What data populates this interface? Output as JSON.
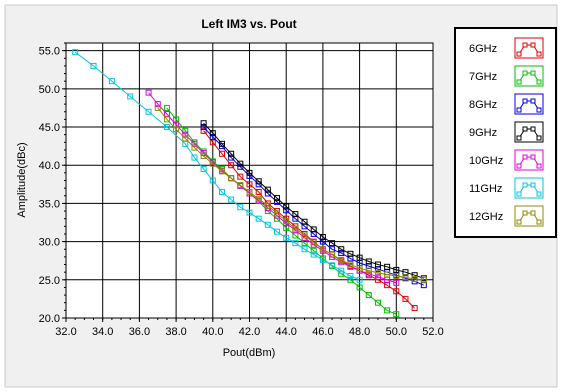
{
  "chart_data": {
    "type": "line",
    "title": "Left IM3 vs. Pout",
    "xlabel": "Pout(dBm)",
    "ylabel": "Amplitude(dBc)",
    "xlim": [
      32.0,
      52.0
    ],
    "ylim": [
      20.0,
      56.0
    ],
    "xticks": [
      "32.0",
      "34.0",
      "36.0",
      "38.0",
      "40.0",
      "42.0",
      "44.0",
      "46.0",
      "48.0",
      "50.0",
      "52.0"
    ],
    "yticks": [
      "20.0",
      "25.0",
      "30.0",
      "35.0",
      "40.0",
      "45.0",
      "50.0",
      "55.0"
    ],
    "grid": true,
    "legend_position": "right",
    "series": [
      {
        "name": "6GHz",
        "color": "#e00000",
        "x": [
          39.5,
          40.0,
          40.5,
          41.0,
          41.5,
          42.0,
          42.5,
          43.0,
          43.5,
          44.0,
          44.5,
          45.0,
          45.5,
          46.0,
          46.5,
          47.0,
          47.5,
          48.0,
          48.5,
          49.0,
          49.5,
          50.0,
          50.5,
          51.0
        ],
        "y": [
          44.5,
          43.0,
          41.5,
          40.0,
          38.5,
          37.5,
          36.5,
          35.0,
          34.0,
          33.0,
          32.0,
          31.0,
          30.0,
          29.0,
          28.3,
          27.5,
          26.8,
          26.2,
          25.6,
          25.0,
          24.3,
          23.5,
          22.5,
          21.3
        ]
      },
      {
        "name": "7GHz",
        "color": "#00c000",
        "x": [
          37.5,
          38.0,
          38.5,
          39.0,
          39.5,
          40.0,
          40.5,
          41.0,
          41.5,
          42.0,
          42.5,
          43.0,
          43.5,
          44.0,
          44.5,
          45.0,
          45.5,
          46.0,
          46.5,
          47.0,
          47.5,
          48.0,
          48.5,
          49.0,
          49.5,
          50.0
        ],
        "y": [
          47.5,
          46.0,
          44.5,
          43.0,
          41.8,
          40.5,
          39.5,
          38.3,
          37.3,
          36.3,
          35.3,
          34.0,
          33.0,
          31.8,
          30.8,
          29.8,
          28.8,
          27.8,
          26.8,
          25.8,
          25.0,
          24.0,
          23.0,
          22.0,
          21.0,
          20.5
        ]
      },
      {
        "name": "8GHz",
        "color": "#0000e0",
        "x": [
          39.5,
          40.0,
          40.5,
          41.0,
          41.5,
          42.0,
          42.5,
          43.0,
          43.5,
          44.0,
          44.5,
          45.0,
          45.5,
          46.0,
          46.5,
          47.0,
          47.5,
          48.0,
          48.5,
          49.0,
          49.5,
          50.0,
          50.5,
          51.0,
          51.5
        ],
        "y": [
          45.0,
          43.7,
          42.5,
          41.0,
          39.8,
          38.6,
          37.5,
          36.3,
          35.2,
          34.1,
          33.0,
          32.0,
          31.0,
          30.0,
          29.0,
          28.5,
          27.8,
          27.2,
          26.8,
          26.4,
          26.0,
          25.6,
          25.2,
          24.8,
          24.3
        ]
      },
      {
        "name": "9GHz",
        "color": "#000000",
        "x": [
          39.5,
          40.0,
          40.5,
          41.0,
          41.5,
          42.0,
          42.5,
          43.0,
          43.5,
          44.0,
          44.5,
          45.0,
          45.5,
          46.0,
          46.5,
          47.0,
          47.5,
          48.0,
          48.5,
          49.0,
          49.5,
          50.0,
          50.5,
          51.0,
          51.5
        ],
        "y": [
          45.5,
          44.2,
          42.8,
          41.5,
          40.2,
          39.0,
          37.9,
          36.8,
          35.7,
          34.6,
          33.6,
          32.6,
          31.6,
          30.6,
          29.8,
          29.0,
          28.4,
          27.9,
          27.4,
          27.0,
          26.7,
          26.3,
          26.0,
          25.6,
          25.2
        ]
      },
      {
        "name": "10GHz",
        "color": "#e000e0",
        "x": [
          36.5,
          37.0,
          37.5,
          38.0,
          38.5,
          39.0,
          39.5,
          40.0,
          40.5,
          41.0,
          41.5,
          42.0,
          42.5,
          43.0,
          43.5,
          44.0,
          44.5,
          45.0,
          45.5,
          46.0,
          46.5,
          47.0,
          47.5,
          48.0,
          48.5,
          49.0,
          49.5,
          50.0
        ],
        "y": [
          49.5,
          48.0,
          46.7,
          45.3,
          44.0,
          42.8,
          41.6,
          40.4,
          39.3,
          38.3,
          37.3,
          36.3,
          35.4,
          34.4,
          33.4,
          32.4,
          31.5,
          30.5,
          29.6,
          28.8,
          28.0,
          27.3,
          26.7,
          26.2,
          25.8,
          25.4,
          25.0,
          24.6
        ]
      },
      {
        "name": "11GHz",
        "color": "#00c8e0",
        "x": [
          32.5,
          33.5,
          34.5,
          35.5,
          36.5,
          37.5,
          38.5,
          39.0,
          39.5,
          40.0,
          40.5,
          41.0,
          41.5,
          42.0,
          42.5,
          43.0,
          43.5,
          44.0,
          44.5,
          45.0,
          45.5,
          46.0,
          46.5,
          47.0,
          47.5,
          48.0
        ],
        "y": [
          54.8,
          53.0,
          51.0,
          49.0,
          47.0,
          45.0,
          42.8,
          41.0,
          39.5,
          38.0,
          36.5,
          35.5,
          34.5,
          33.8,
          33.0,
          32.2,
          31.3,
          30.5,
          29.8,
          29.0,
          28.3,
          27.6,
          26.9,
          26.2,
          25.5,
          25.0
        ]
      },
      {
        "name": "12GHz",
        "color": "#8c8c00",
        "x": [
          37.0,
          37.5,
          38.0,
          38.5,
          39.0,
          39.5,
          40.0,
          40.5,
          41.0,
          41.5,
          42.0,
          42.5,
          43.0,
          43.5,
          44.0,
          44.5,
          45.0,
          45.5,
          46.0,
          46.5,
          47.0,
          47.5,
          48.0,
          48.5,
          49.0,
          49.5,
          50.0,
          50.5,
          51.0,
          51.5
        ],
        "y": [
          47.5,
          46.0,
          44.7,
          43.5,
          42.3,
          41.2,
          40.2,
          39.2,
          38.3,
          37.4,
          36.5,
          35.6,
          34.7,
          33.7,
          32.7,
          31.7,
          30.8,
          29.9,
          29.0,
          28.3,
          27.6,
          27.0,
          26.5,
          26.2,
          25.9,
          25.7,
          25.5,
          25.3,
          25.1,
          25.0
        ]
      }
    ]
  }
}
